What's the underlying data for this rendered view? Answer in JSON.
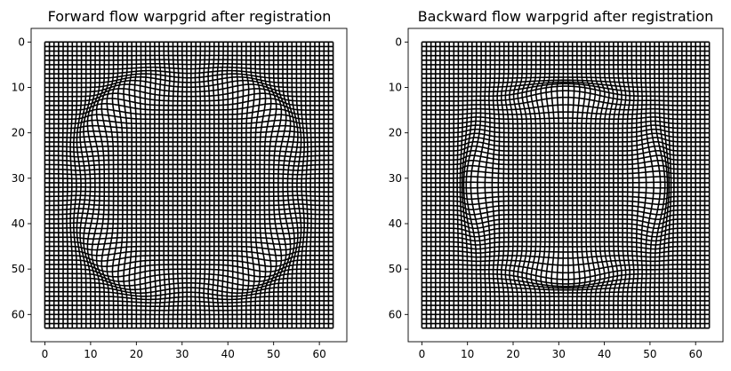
{
  "chart_data": [
    {
      "type": "warpgrid",
      "title": "Forward flow warpgrid after registration",
      "xlim": [
        -3,
        66
      ],
      "ylim": [
        66,
        -3
      ],
      "grid_range": [
        0,
        63
      ],
      "grid_step": 1,
      "line_color": "#000000",
      "xticks": [
        0,
        10,
        20,
        30,
        40,
        50,
        60
      ],
      "yticks": [
        0,
        10,
        20,
        30,
        40,
        50,
        60
      ],
      "deformation": {
        "shape": "circle",
        "center": [
          31.5,
          31.5
        ],
        "radius": 24,
        "lobes": 4,
        "lobe_angle_deg": 45
      }
    },
    {
      "type": "warpgrid",
      "title": "Backward flow warpgrid after registration",
      "xlim": [
        -3,
        66
      ],
      "ylim": [
        66,
        -3
      ],
      "grid_range": [
        0,
        63
      ],
      "grid_step": 1,
      "line_color": "#000000",
      "xticks": [
        0,
        10,
        20,
        30,
        40,
        50,
        60
      ],
      "yticks": [
        0,
        10,
        20,
        30,
        40,
        50,
        60
      ],
      "deformation": {
        "shape": "rounded-square",
        "center": [
          31.5,
          31.5
        ],
        "half_width": 19,
        "lobes": 4,
        "lobe_angle_deg": 0
      }
    }
  ]
}
